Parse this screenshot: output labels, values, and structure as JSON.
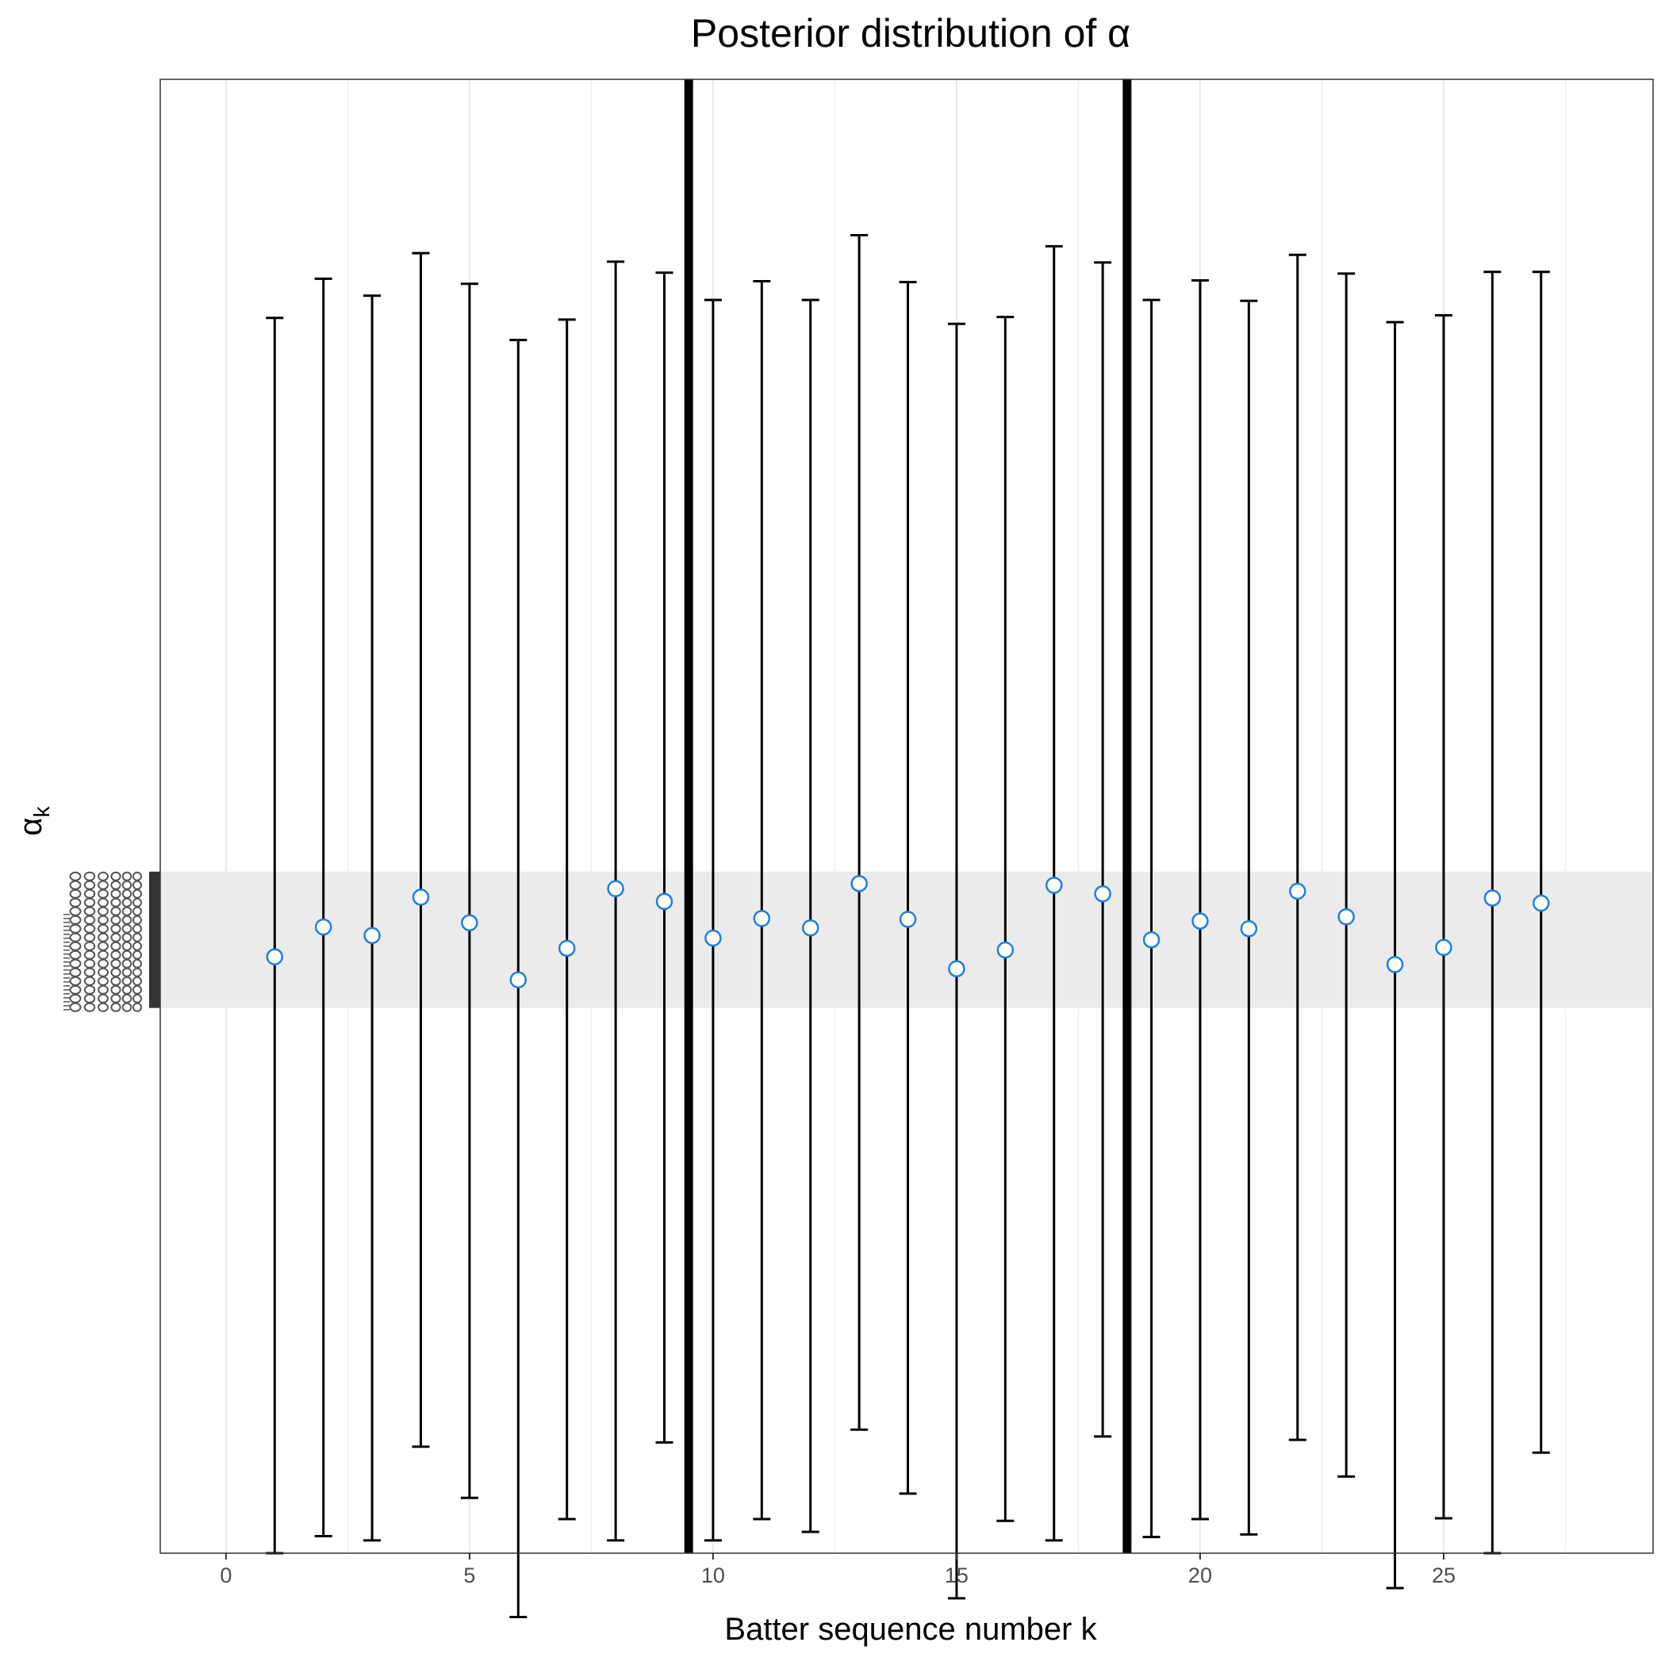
{
  "chart_data": {
    "type": "scatter",
    "title": "Posterior distribution of α",
    "xlabel": "Batter sequence number k",
    "ylabel_main": "α",
    "ylabel_sub": "k",
    "xlim": [
      -1.35,
      29.3
    ],
    "ylim": [
      -0.73,
      1.0
    ],
    "x_ticks": [
      0,
      5,
      10,
      15,
      20,
      25
    ],
    "grid": true,
    "vlines": [
      9.5,
      18.5
    ],
    "band": [
      -0.09,
      0.07
    ],
    "series": [
      {
        "x": [
          1,
          2,
          3,
          4,
          5,
          6,
          7,
          8,
          9,
          10,
          11,
          12,
          13,
          14,
          15,
          16,
          17,
          18,
          19,
          20,
          21,
          22,
          23,
          24,
          25,
          26,
          27
        ],
        "values": [
          -0.03,
          0.005,
          -0.005,
          0.04,
          0.01,
          -0.057,
          -0.02,
          0.05,
          0.035,
          -0.008,
          0.015,
          0.004,
          0.056,
          0.014,
          -0.044,
          -0.022,
          0.054,
          0.044,
          -0.01,
          0.012,
          0.003,
          0.047,
          0.017,
          -0.039,
          -0.019,
          0.039,
          0.033
        ],
        "lower": [
          -0.73,
          -0.71,
          -0.715,
          -0.605,
          -0.665,
          -0.805,
          -0.69,
          -0.715,
          -0.6,
          -0.715,
          -0.69,
          -0.705,
          -0.585,
          -0.66,
          -0.783,
          -0.692,
          -0.715,
          -0.593,
          -0.711,
          -0.69,
          -0.708,
          -0.597,
          -0.64,
          -0.771,
          -0.689,
          -0.73,
          -0.612
        ],
        "upper": [
          0.72,
          0.766,
          0.746,
          0.796,
          0.76,
          0.694,
          0.718,
          0.786,
          0.773,
          0.741,
          0.763,
          0.741,
          0.817,
          0.762,
          0.713,
          0.721,
          0.804,
          0.785,
          0.741,
          0.764,
          0.74,
          0.794,
          0.772,
          0.715,
          0.723,
          0.774,
          0.774
        ]
      }
    ]
  }
}
